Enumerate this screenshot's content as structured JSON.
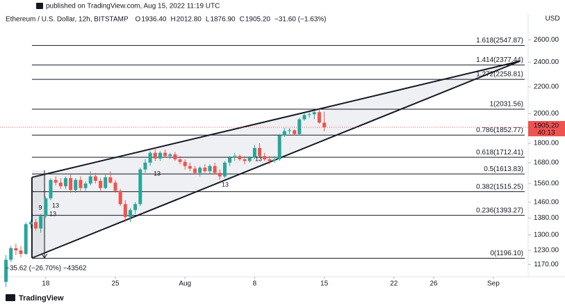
{
  "header": "published on TradingView.com, Aug 15, 2022 11:19 UTC",
  "footer": "TradingView",
  "chart_data": {
    "type": "candlestick",
    "symbol": "Ethereum / U.S. Dollar, 12h, BITSTAMP",
    "ohlc_legend": [
      {
        "key": "O",
        "value": "1936.40"
      },
      {
        "key": "H",
        "value": "2012.80"
      },
      {
        "key": "L",
        "value": "1876.90"
      },
      {
        "key": "C",
        "value": "1905.20"
      }
    ],
    "change": "−31.60 (−1.63%)",
    "currency": "USD",
    "log_scale": true,
    "grid": false,
    "up_color": "#26a69a",
    "down_color": "#ef5350",
    "x": [
      14,
      14.5,
      15,
      15.5,
      16,
      16.5,
      17,
      17.5,
      18,
      18.5,
      19,
      19.5,
      20,
      20.5,
      21,
      21.5,
      22,
      22.5,
      23,
      23.5,
      24,
      24.5,
      25,
      25.5,
      26,
      26.5,
      27,
      27.5,
      28,
      28.5,
      29,
      29.5,
      30,
      30.5,
      31,
      31.5,
      32,
      32.5,
      33,
      33.5,
      34,
      34.5,
      35,
      35.5,
      36,
      36.5,
      37,
      37.5,
      38,
      38.5,
      39,
      39.5,
      40,
      40.5,
      41,
      41.5,
      42,
      42.5,
      43,
      43.5,
      44,
      44.5,
      45,
      45.5,
      46
    ],
    "open": [
      1100,
      1190,
      1240,
      1230,
      1215,
      1350,
      1360,
      1330,
      1390,
      1480,
      1580,
      1565,
      1545,
      1590,
      1525,
      1580,
      1535,
      1560,
      1600,
      1575,
      1535,
      1595,
      1565,
      1520,
      1450,
      1385,
      1420,
      1450,
      1640,
      1680,
      1740,
      1705,
      1740,
      1720,
      1730,
      1700,
      1685,
      1660,
      1645,
      1620,
      1650,
      1630,
      1660,
      1620,
      1600,
      1680,
      1710,
      1720,
      1700,
      1690,
      1710,
      1770,
      1720,
      1700,
      1690,
      1700,
      1850,
      1880,
      1885,
      1860,
      1960,
      1990,
      1995,
      2010,
      1936.4
    ],
    "high": [
      1210,
      1250,
      1260,
      1250,
      1360,
      1370,
      1375,
      1400,
      1490,
      1590,
      1600,
      1590,
      1600,
      1610,
      1590,
      1600,
      1570,
      1630,
      1620,
      1590,
      1610,
      1630,
      1580,
      1530,
      1470,
      1430,
      1460,
      1650,
      1700,
      1750,
      1770,
      1750,
      1760,
      1740,
      1745,
      1720,
      1700,
      1680,
      1660,
      1660,
      1670,
      1670,
      1680,
      1640,
      1690,
      1720,
      1740,
      1730,
      1720,
      1720,
      1790,
      1800,
      1740,
      1720,
      1720,
      1860,
      1900,
      1900,
      1890,
      1970,
      2000,
      2010,
      2020,
      2030,
      2012.8
    ],
    "low": [
      1080,
      1180,
      1210,
      1200,
      1210,
      1330,
      1320,
      1310,
      1380,
      1470,
      1550,
      1530,
      1530,
      1510,
      1510,
      1520,
      1520,
      1550,
      1560,
      1520,
      1530,
      1560,
      1510,
      1440,
      1360,
      1360,
      1400,
      1440,
      1620,
      1660,
      1690,
      1690,
      1710,
      1700,
      1690,
      1670,
      1640,
      1630,
      1610,
      1600,
      1620,
      1615,
      1610,
      1580,
      1590,
      1660,
      1690,
      1690,
      1670,
      1680,
      1700,
      1710,
      1690,
      1670,
      1680,
      1690,
      1840,
      1860,
      1850,
      1850,
      1950,
      1970,
      1960,
      1930,
      1876.9
    ],
    "close": [
      1190,
      1240,
      1230,
      1215,
      1350,
      1360,
      1330,
      1390,
      1480,
      1580,
      1565,
      1545,
      1590,
      1525,
      1580,
      1535,
      1560,
      1600,
      1575,
      1535,
      1595,
      1565,
      1520,
      1450,
      1385,
      1420,
      1450,
      1640,
      1680,
      1740,
      1705,
      1740,
      1720,
      1730,
      1700,
      1685,
      1660,
      1645,
      1620,
      1650,
      1630,
      1660,
      1620,
      1600,
      1680,
      1710,
      1720,
      1700,
      1690,
      1710,
      1770,
      1720,
      1700,
      1690,
      1700,
      1850,
      1880,
      1885,
      1860,
      1960,
      1990,
      1995,
      2010,
      1936.8,
      1905.2
    ],
    "xlim": [
      13.4,
      66.5
    ],
    "xticks": [
      {
        "value": 18,
        "label": "18"
      },
      {
        "value": 25,
        "label": "25"
      },
      {
        "value": 32,
        "label": "Aug"
      },
      {
        "value": 39,
        "label": "8"
      },
      {
        "value": 46,
        "label": "15"
      },
      {
        "value": 53,
        "label": "22"
      },
      {
        "value": 57,
        "label": "26"
      },
      {
        "value": 63,
        "label": "Sep"
      }
    ],
    "ylim": [
      1120,
      2850
    ],
    "yticks": [
      {
        "value": 2600,
        "label": "2600.00"
      },
      {
        "value": 2400,
        "label": "2400.00"
      },
      {
        "value": 2200,
        "label": "2200.00"
      },
      {
        "value": 2000,
        "label": "2000.00"
      },
      {
        "value": 1800,
        "label": "1800.00"
      },
      {
        "value": 1680,
        "label": "1680.00"
      },
      {
        "value": 1560,
        "label": "1560.00"
      },
      {
        "value": 1460,
        "label": "1460.00"
      },
      {
        "value": 1380,
        "label": "1380.00"
      },
      {
        "value": 1300,
        "label": "1300.00"
      },
      {
        "value": 1230,
        "label": "1230.00"
      },
      {
        "value": 1170,
        "label": "1170.00"
      }
    ],
    "fib_levels": [
      {
        "value": 2547.87,
        "label": "1.618(2547.87)",
        "color": "#131722"
      },
      {
        "value": 2377.44,
        "label": "1.414(2377.44)",
        "color": "#131722"
      },
      {
        "value": 2258.81,
        "label": "1.272(2258.81)",
        "color": "#131722"
      },
      {
        "value": 2031.56,
        "label": "1(2031.56)",
        "color": "#131722"
      },
      {
        "value": 1852.77,
        "label": "0.786(1852.77)",
        "color": "#f23645"
      },
      {
        "value": 1712.41,
        "label": "0.618(1712.41)",
        "color": "#131722"
      },
      {
        "value": 1613.83,
        "label": "0.5(1613.83)",
        "color": "#131722"
      },
      {
        "value": 1515.25,
        "label": "0.382(1515.25)",
        "color": "#131722"
      },
      {
        "value": 1393.27,
        "label": "0.236(1393.27)",
        "color": "#131722"
      },
      {
        "value": 1196.1,
        "label": "0(1196.10)",
        "color": "#131722"
      }
    ],
    "last_price": {
      "value": 1905.2,
      "label": "1905.20"
    },
    "countdown": "40:13",
    "measure_label": "−35.62 (−26.70%) −43562",
    "markers": [
      "9",
      "13",
      "13",
      "13",
      "13",
      "13"
    ]
  }
}
